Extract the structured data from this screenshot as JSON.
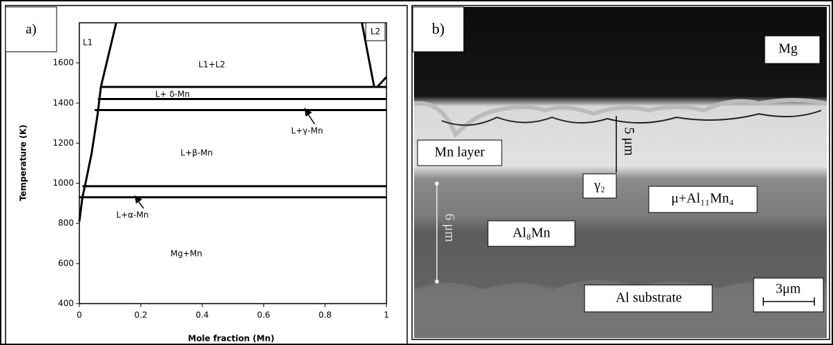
{
  "panel_a_label": "a)",
  "chart_data": {
    "type": "line",
    "xlabel": "Mole fraction (Mn)",
    "ylabel": "Temperature (K)",
    "xlim": [
      0,
      1
    ],
    "ylim": [
      400,
      1800
    ],
    "xticks": [
      0,
      0.2,
      0.4,
      0.6,
      0.8,
      1
    ],
    "yticks": [
      400,
      600,
      800,
      1000,
      1200,
      1400,
      1600
    ],
    "color": "#000000",
    "series": [
      {
        "x": [
          0,
          0.01,
          0.02,
          0.04,
          0.06,
          0.07,
          0.12
        ],
        "values": [
          810,
          930,
          1000,
          1150,
          1350,
          1480,
          1800
        ]
      },
      {
        "x": [
          0.92,
          0.96
        ],
        "values": [
          1800,
          1480
        ]
      },
      {
        "x": [
          0.97,
          1
        ],
        "values": [
          1480,
          1530
        ]
      },
      {
        "x": [
          0.07,
          1
        ],
        "values": [
          1480,
          1480
        ]
      },
      {
        "x": [
          0.06,
          1
        ],
        "values": [
          1420,
          1420
        ]
      },
      {
        "x": [
          0.05,
          1
        ],
        "values": [
          1365,
          1365
        ]
      },
      {
        "x": [
          0.01,
          1
        ],
        "values": [
          985,
          985
        ]
      },
      {
        "x": [
          0,
          1
        ],
        "values": [
          930,
          930
        ]
      }
    ],
    "annotations": [
      "L1",
      "L2",
      "L1+L2",
      "L+ δ-Mn",
      "L+γ-Mn",
      "L+β-Mn",
      "L+α-Mn",
      "Mg+Mn"
    ]
  },
  "micrograph": {
    "panel_label": "b)",
    "labels": [
      "Mg",
      "Mn layer",
      "γ₂",
      "μ+Al₁₁Mn₄",
      "Al₈Mn",
      "Al substrate",
      "3μm"
    ],
    "measures": [
      "5 μm",
      "6 μm"
    ]
  }
}
